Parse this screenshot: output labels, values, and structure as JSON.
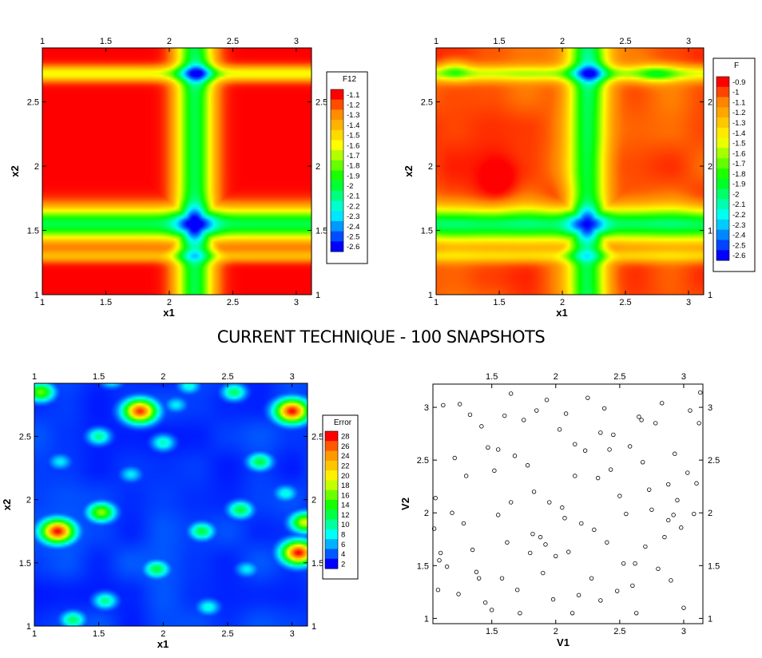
{
  "page_title": "CURRENT TECHNIQUE - 100 SNAPSHOTS",
  "colors": {
    "scale": [
      "#0000ff",
      "#0080ff",
      "#00ffff",
      "#00ff80",
      "#00ff00",
      "#80ff00",
      "#ffff00",
      "#ffc000",
      "#ff8000",
      "#ff0000"
    ],
    "axis": "#000000",
    "frame": "#000000"
  },
  "chart_data": [
    {
      "type": "heatmap",
      "panel": "top-left",
      "xlabel": "x1",
      "ylabel": "x2",
      "xlim": [
        1,
        3.12
      ],
      "ylim": [
        1,
        2.92
      ],
      "xticks": [
        "1",
        "1.5",
        "2",
        "2.5",
        "3"
      ],
      "yticks": [
        "1",
        "1.5",
        "2",
        "2.5"
      ],
      "legend": {
        "title": "F12",
        "labels": [
          "-1.1",
          "-1.2",
          "-1.3",
          "-1.4",
          "-1.5",
          "-1.6",
          "-1.7",
          "-1.8",
          "-1.9",
          "-2",
          "-2.1",
          "-2.2",
          "-2.3",
          "-2.4",
          "-2.5",
          "-2.6"
        ]
      },
      "description_values": {
        "plateau_value": -1.05,
        "band_x1_center": 2.2,
        "band_x2_center": 1.55,
        "minimum": -2.6,
        "minimum_location": [
          2.2,
          1.55
        ]
      }
    },
    {
      "type": "heatmap",
      "panel": "top-right",
      "xlabel": "x1",
      "ylabel": "x2",
      "xlim": [
        1,
        3.12
      ],
      "ylim": [
        1,
        2.92
      ],
      "xticks": [
        "1",
        "1.5",
        "2",
        "2.5",
        "3"
      ],
      "yticks": [
        "1",
        "1.5",
        "2",
        "2.5"
      ],
      "legend": {
        "title": "F",
        "labels": [
          "-0.9",
          "-1",
          "-1.1",
          "-1.2",
          "-1.3",
          "-1.4",
          "-1.5",
          "-1.6",
          "-1.7",
          "-1.8",
          "-1.9",
          "-2",
          "-2.1",
          "-2.2",
          "-2.3",
          "-2.4",
          "-2.5",
          "-2.6"
        ]
      },
      "description_values": {
        "plateau_value": -1.1,
        "minimum": -2.6,
        "minimum_location": [
          2.2,
          1.55
        ]
      }
    },
    {
      "type": "heatmap",
      "panel": "bottom-left",
      "xlabel": "x1",
      "ylabel": "x2",
      "xlim": [
        1,
        3.12
      ],
      "ylim": [
        1,
        2.92
      ],
      "xticks": [
        "1",
        "1.5",
        "2",
        "2.5",
        "3"
      ],
      "yticks": [
        "1",
        "1.5",
        "2",
        "2.5"
      ],
      "legend": {
        "title": "Error",
        "labels": [
          "28",
          "26",
          "24",
          "22",
          "20",
          "18",
          "16",
          "14",
          "12",
          "10",
          "8",
          "6",
          "4",
          "2"
        ]
      },
      "hotspots": [
        {
          "x": 1.18,
          "y": 1.75,
          "value": 28
        },
        {
          "x": 1.82,
          "y": 2.7,
          "value": 27
        },
        {
          "x": 3.0,
          "y": 2.7,
          "value": 28
        },
        {
          "x": 3.05,
          "y": 1.58,
          "value": 28
        },
        {
          "x": 3.1,
          "y": 1.82,
          "value": 18
        },
        {
          "x": 1.52,
          "y": 1.9,
          "value": 16
        },
        {
          "x": 1.05,
          "y": 2.85,
          "value": 15
        },
        {
          "x": 2.55,
          "y": 2.85,
          "value": 10
        },
        {
          "x": 2.3,
          "y": 1.75,
          "value": 11
        },
        {
          "x": 2.6,
          "y": 1.92,
          "value": 11
        },
        {
          "x": 2.75,
          "y": 2.3,
          "value": 11
        },
        {
          "x": 1.5,
          "y": 2.5,
          "value": 9
        },
        {
          "x": 1.6,
          "y": 2.95,
          "value": 8
        },
        {
          "x": 2.0,
          "y": 2.45,
          "value": 8
        },
        {
          "x": 1.95,
          "y": 1.45,
          "value": 11
        },
        {
          "x": 1.55,
          "y": 1.2,
          "value": 9
        },
        {
          "x": 2.35,
          "y": 1.15,
          "value": 7
        },
        {
          "x": 2.65,
          "y": 1.45,
          "value": 6
        },
        {
          "x": 2.95,
          "y": 2.05,
          "value": 7
        },
        {
          "x": 1.2,
          "y": 2.3,
          "value": 6
        },
        {
          "x": 1.75,
          "y": 2.2,
          "value": 6
        },
        {
          "x": 2.2,
          "y": 2.9,
          "value": 7
        },
        {
          "x": 1.3,
          "y": 1.05,
          "value": 10
        },
        {
          "x": 2.1,
          "y": 2.75,
          "value": 6
        }
      ]
    },
    {
      "type": "scatter",
      "panel": "bottom-right",
      "xlabel": "V1",
      "ylabel": "V2",
      "xlim": [
        1.04,
        3.15
      ],
      "ylim": [
        0.95,
        3.22
      ],
      "xticks": [
        "1.5",
        "2",
        "2.5",
        "3"
      ],
      "yticks": [
        "1",
        "1.5",
        "2",
        "2.5",
        "3"
      ],
      "x": [
        1.03,
        1.05,
        1.06,
        1.08,
        1.09,
        1.12,
        1.15,
        1.19,
        1.21,
        1.24,
        1.28,
        1.3,
        1.33,
        1.35,
        1.38,
        1.42,
        1.45,
        1.47,
        1.5,
        1.52,
        1.55,
        1.58,
        1.6,
        1.62,
        1.65,
        1.68,
        1.7,
        1.72,
        1.75,
        1.78,
        1.8,
        1.83,
        1.85,
        1.88,
        1.9,
        1.93,
        1.95,
        1.98,
        2.0,
        2.03,
        2.05,
        2.08,
        2.1,
        2.13,
        2.15,
        2.18,
        2.2,
        2.23,
        2.25,
        2.28,
        2.3,
        2.33,
        2.35,
        2.38,
        2.4,
        2.43,
        2.45,
        2.48,
        2.5,
        2.53,
        2.55,
        2.58,
        2.6,
        2.63,
        2.65,
        2.68,
        2.7,
        2.73,
        2.75,
        2.78,
        2.8,
        2.83,
        2.85,
        2.88,
        2.9,
        2.93,
        2.95,
        2.98,
        3.0,
        3.03,
        3.05,
        3.08,
        3.1,
        3.13,
        1.1,
        1.4,
        1.65,
        1.92,
        2.15,
        2.42,
        2.67,
        2.92,
        3.12,
        1.25,
        1.55,
        1.82,
        2.07,
        2.35,
        2.62,
        2.88
      ],
      "y": [
        2.72,
        1.85,
        2.14,
        1.27,
        1.55,
        3.02,
        1.49,
        2.0,
        2.52,
        1.23,
        1.9,
        2.35,
        2.93,
        1.65,
        1.44,
        2.82,
        1.15,
        2.62,
        1.08,
        2.4,
        1.98,
        1.38,
        2.92,
        1.72,
        3.13,
        2.54,
        1.27,
        1.05,
        2.88,
        2.45,
        1.62,
        2.2,
        2.97,
        1.77,
        1.43,
        3.07,
        2.1,
        1.18,
        1.59,
        2.79,
        2.05,
        2.94,
        1.63,
        1.05,
        2.65,
        1.22,
        1.9,
        2.59,
        3.09,
        1.38,
        1.84,
        2.33,
        1.17,
        2.99,
        1.72,
        2.41,
        2.74,
        1.26,
        2.16,
        1.52,
        1.99,
        2.63,
        1.31,
        1.05,
        2.91,
        2.48,
        1.68,
        2.22,
        2.03,
        2.85,
        1.47,
        3.04,
        1.77,
        2.27,
        1.36,
        2.56,
        2.12,
        1.86,
        1.1,
        2.38,
        2.97,
        1.99,
        2.28,
        3.14,
        1.62,
        1.38,
        2.1,
        1.7,
        2.35,
        2.6,
        2.88,
        1.98,
        2.85,
        3.03,
        2.6,
        1.8,
        1.95,
        2.76,
        1.52,
        1.93
      ]
    }
  ]
}
